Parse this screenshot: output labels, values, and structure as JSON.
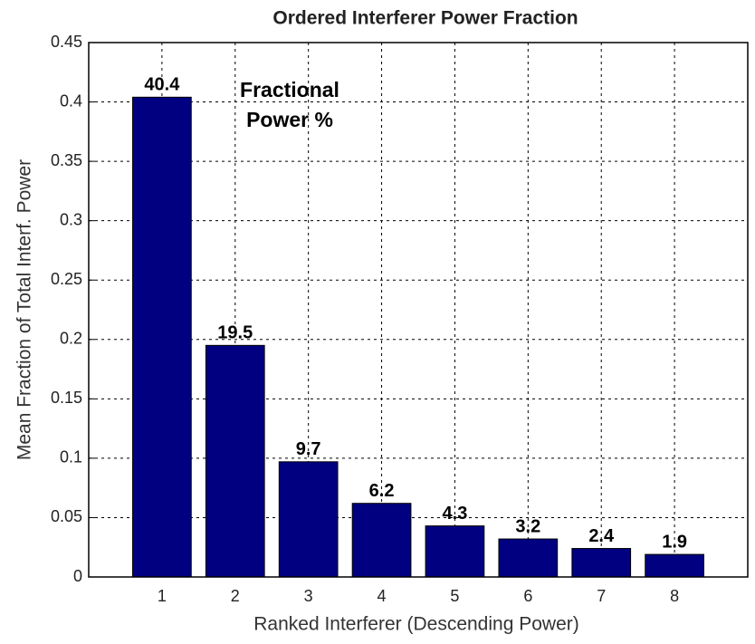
{
  "chart_data": {
    "type": "bar",
    "title": "Ordered Interferer Power Fraction",
    "x_label": "Ranked Interferer (Descending Power)",
    "y_label": "Mean Fraction of Total Interf. Power",
    "annotation": [
      "Fractional",
      "Power %"
    ],
    "categories": [
      "1",
      "2",
      "3",
      "4",
      "5",
      "6",
      "7",
      "8"
    ],
    "values": [
      0.404,
      0.195,
      0.097,
      0.062,
      0.043,
      0.032,
      0.024,
      0.019
    ],
    "value_labels": [
      "40.4",
      "19.5",
      "9.7",
      "6.2",
      "4.3",
      "3.2",
      "2.4",
      "1.9"
    ],
    "color": "#000080",
    "ylim": [
      0,
      0.45
    ],
    "yticks": [
      0,
      0.05,
      0.1,
      0.15,
      0.2,
      0.25,
      0.3,
      0.35,
      0.4,
      0.45
    ],
    "grid": true
  }
}
